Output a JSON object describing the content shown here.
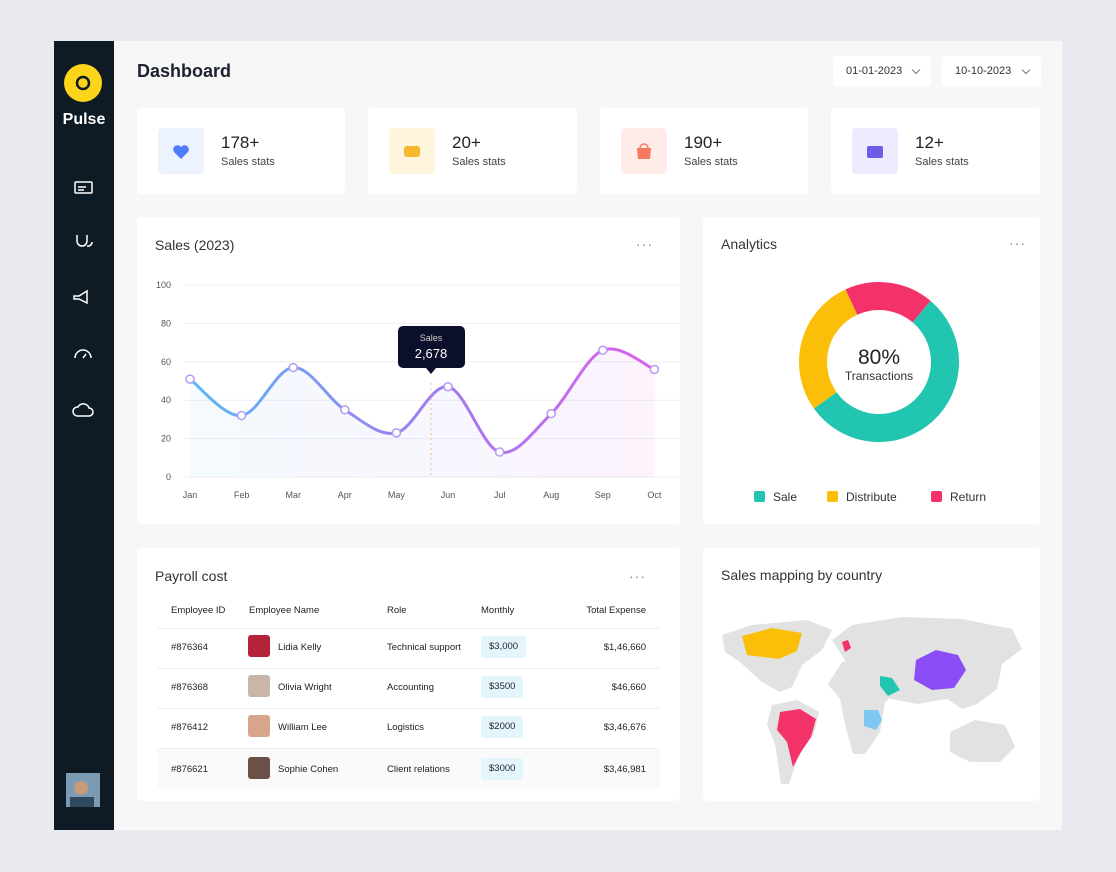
{
  "brand": "Pulse",
  "header": {
    "title": "Dashboard",
    "date_from": "01-01-2023",
    "date_to": "10-10-2023"
  },
  "stats": [
    {
      "value": "178+",
      "label": "Sales stats"
    },
    {
      "value": "20+",
      "label": "Sales stats"
    },
    {
      "value": "190+",
      "label": "Sales stats"
    },
    {
      "value": "12+",
      "label": "Sales stats"
    }
  ],
  "sales_chart": {
    "type": "line",
    "title": "Sales (2023)",
    "categories": [
      "Jan",
      "Feb",
      "Mar",
      "Apr",
      "May",
      "Jun",
      "Jul",
      "Aug",
      "Sep",
      "Oct"
    ],
    "values": [
      51,
      32,
      57,
      35,
      23,
      47,
      13,
      33,
      66,
      56
    ],
    "ylim": [
      0,
      100
    ],
    "yticks": [
      0,
      20,
      40,
      60,
      80,
      100
    ],
    "tooltip": {
      "label": "Sales",
      "value": "2,678"
    }
  },
  "analytics": {
    "type": "pie",
    "title": "Analytics",
    "center_value": "80%",
    "center_label": "Transactions",
    "categories": [
      "Sale",
      "Distribute",
      "Return"
    ],
    "values": [
      54,
      28,
      18
    ],
    "colors": [
      "#22c5b0",
      "#fbbf0a",
      "#f4326a"
    ]
  },
  "payroll": {
    "title": "Payroll cost",
    "columns": [
      "Employee ID",
      "Employee Name",
      "Role",
      "Monthly",
      "Total Expense"
    ],
    "rows": [
      [
        "#876364",
        "Lidia Kelly",
        "Technical support",
        "$3,000",
        "$1,46,660"
      ],
      [
        "#876368",
        "Olivia Wright",
        "Accounting",
        "$3500",
        "$46,660"
      ],
      [
        "#876412",
        "William Lee",
        "Logistics",
        "$2000",
        "$3,46,676"
      ],
      [
        "#876621",
        "Sophie Cohen",
        "Client relations",
        "$3000",
        "$3,46,981"
      ]
    ]
  },
  "map": {
    "title": "Sales mapping by country"
  }
}
